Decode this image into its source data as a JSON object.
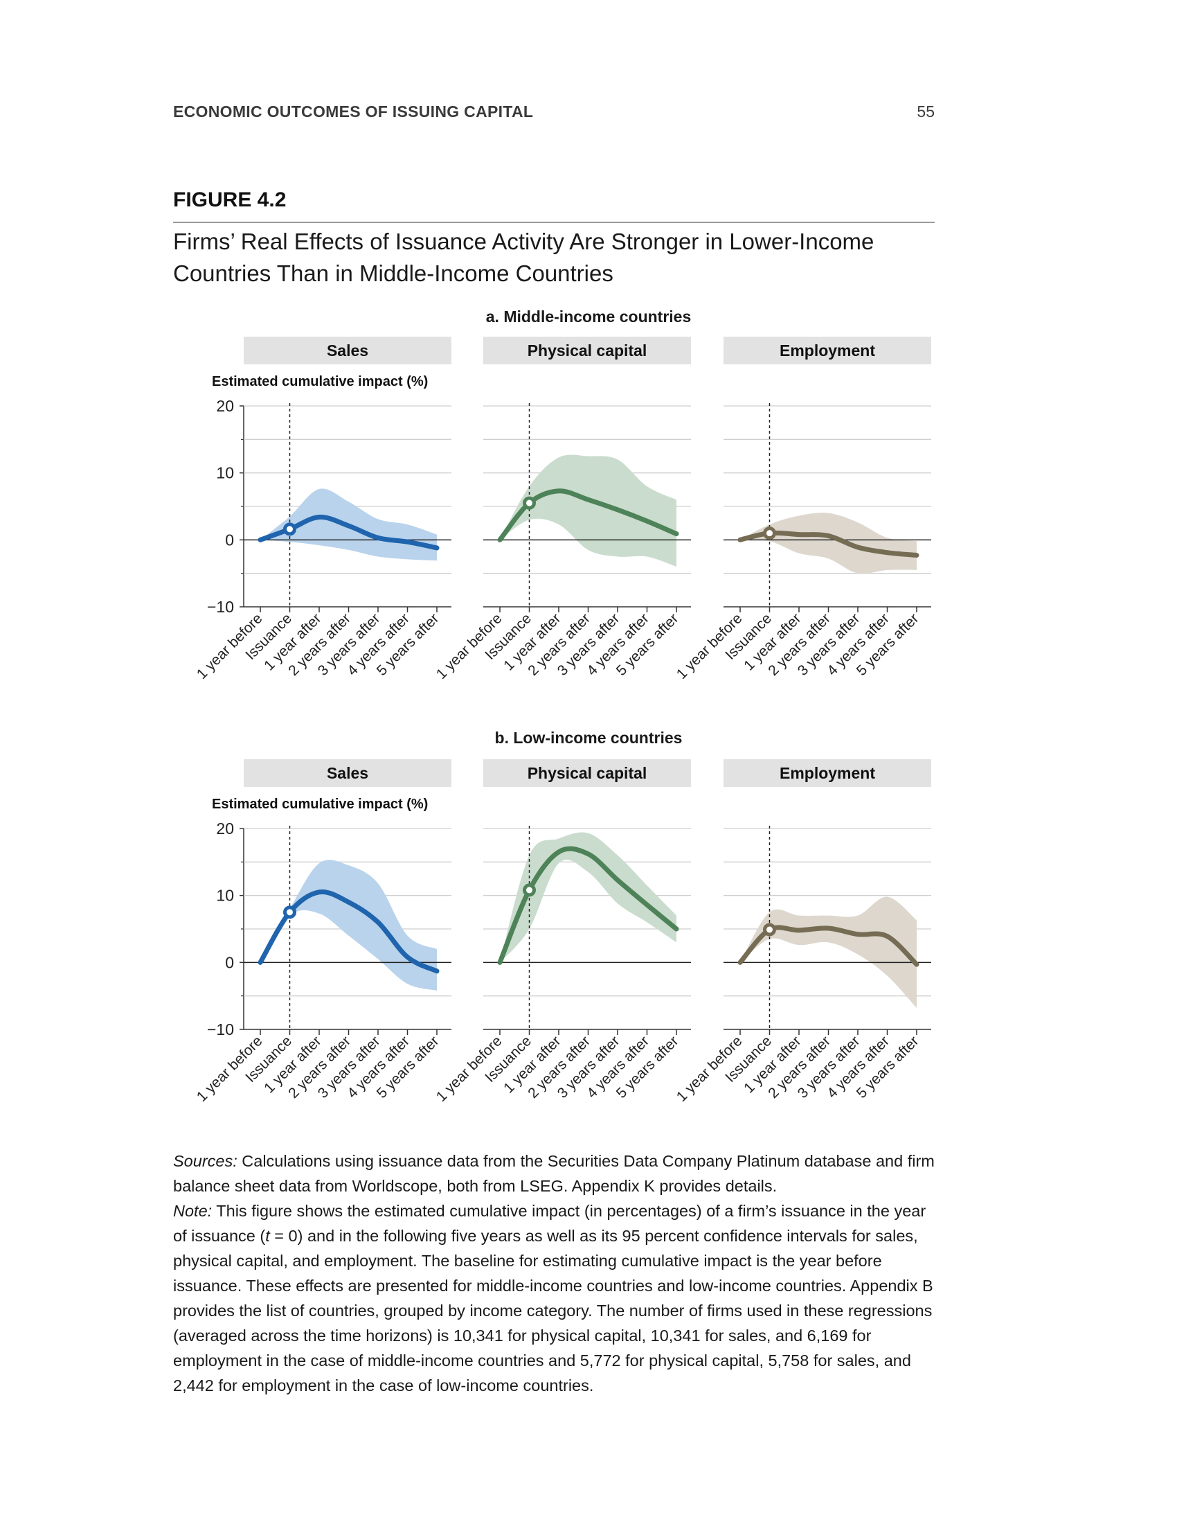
{
  "header": {
    "running_head": "ECONOMIC OUTCOMES OF ISSUING CAPITAL",
    "page_number": "55"
  },
  "figure": {
    "label": "FIGURE 4.2",
    "title": "Firms’ Real Effects of Issuance Activity Are Stronger in Lower-Income Countries Than in Middle-Income Countries"
  },
  "colors": {
    "sales": "#1f64ad",
    "sales_band": "#b9d3ec",
    "physical_capital": "#4e8258",
    "physical_capital_band": "#cadccd",
    "employment": "#766c54",
    "employment_band": "#ddd7ce",
    "facet_strip": "#e2e2e2"
  },
  "chart_data": [
    {
      "type": "line",
      "panel_title": "a. Middle-income countries",
      "ylabel": "Estimated cumulative impact (%)",
      "ylim": [
        -10,
        20
      ],
      "yticks": [
        "20",
        "10",
        "0",
        "−10"
      ],
      "x": [
        "1 year before",
        "Issuance",
        "1 year after",
        "2 years after",
        "3 years after",
        "4 years after",
        "5 years after"
      ],
      "grid": true,
      "reference_line": "Issuance",
      "series": [
        {
          "name": "Sales",
          "color_key": "sales",
          "values": [
            0,
            1.6,
            3.4,
            2.1,
            0.3,
            -0.3,
            -1.2
          ],
          "lower": [
            0,
            -0.3,
            -0.8,
            -1.5,
            -2.5,
            -2.9,
            -3.1
          ],
          "upper": [
            0,
            3.5,
            7.6,
            5.7,
            3.1,
            2.3,
            0.8
          ]
        },
        {
          "name": "Physical capital",
          "color_key": "physical_capital",
          "values": [
            0,
            5.5,
            7.3,
            6.0,
            4.5,
            2.8,
            0.9
          ],
          "lower": [
            0,
            3.0,
            2.3,
            -1.5,
            -2.5,
            -2.5,
            -4.0
          ],
          "upper": [
            0,
            8.0,
            12.3,
            12.5,
            12.0,
            8.0,
            6.0
          ]
        },
        {
          "name": "Employment",
          "color_key": "employment",
          "values": [
            0,
            1.0,
            0.8,
            0.6,
            -1.1,
            -1.9,
            -2.3
          ],
          "lower": [
            0,
            -0.2,
            -2.0,
            -2.8,
            -5.0,
            -4.5,
            -4.5
          ],
          "upper": [
            0,
            2.3,
            3.6,
            4.0,
            2.6,
            0.3,
            -0.2
          ]
        }
      ]
    },
    {
      "type": "line",
      "panel_title": "b. Low-income countries",
      "ylabel": "Estimated cumulative impact (%)",
      "ylim": [
        -10,
        20
      ],
      "yticks": [
        "20",
        "10",
        "0",
        "−10"
      ],
      "x": [
        "1 year before",
        "Issuance",
        "1 year after",
        "2 years after",
        "3 years after",
        "4 years after",
        "5 years after"
      ],
      "grid": true,
      "reference_line": "Issuance",
      "series": [
        {
          "name": "Sales",
          "color_key": "sales",
          "values": [
            0,
            7.5,
            10.5,
            9.0,
            6.0,
            0.8,
            -1.3
          ],
          "lower": [
            0,
            7.0,
            7.3,
            4.0,
            0.5,
            -3.2,
            -4.2
          ],
          "upper": [
            0,
            8.0,
            14.8,
            14.5,
            11.8,
            4.0,
            2.0
          ]
        },
        {
          "name": "Physical capital",
          "color_key": "physical_capital",
          "values": [
            0,
            10.8,
            16.5,
            16.2,
            12.3,
            8.6,
            5.0
          ],
          "lower": [
            0,
            5.0,
            14.8,
            13.5,
            8.8,
            6.0,
            3.0
          ],
          "upper": [
            0,
            16.0,
            18.5,
            19.3,
            16.0,
            11.5,
            7.0
          ]
        },
        {
          "name": "Employment",
          "color_key": "employment",
          "values": [
            0,
            4.9,
            4.8,
            5.1,
            4.2,
            3.9,
            -0.3
          ],
          "lower": [
            0,
            3.5,
            2.6,
            3.0,
            1.2,
            -2.0,
            -6.8
          ],
          "upper": [
            0,
            7.5,
            7.0,
            7.0,
            7.0,
            9.8,
            6.3
          ]
        }
      ]
    }
  ],
  "notes": {
    "sources_label": "Sources:",
    "sources_text": " Calculations using issuance data from the Securities Data Company Platinum database and firm balance sheet data from Worldscope, both from LSEG. Appendix K provides details.",
    "note_label": "Note:",
    "note_text_1": " This figure shows the estimated cumulative impact (in percentages) of a firm’s issuance in the year of issuance (",
    "note_t": "t",
    "note_text_2": " = 0) and in the following five years as well as its 95 percent confidence intervals for sales, physical capital, and employment. The baseline for estimating cumulative impact is the year before issuance. These effects are presented for middle-income countries and low-income countries. Appendix B provides the list of countries, grouped by income category. The number of firms used in these regressions (averaged across the time horizons) is 10,341 for physical capital, 10,341 for sales, and 6,169 for employment in the case of middle-income countries and 5,772 for physical capital, 5,758 for sales, and 2,442 for employment in the case of low-income countries."
  }
}
